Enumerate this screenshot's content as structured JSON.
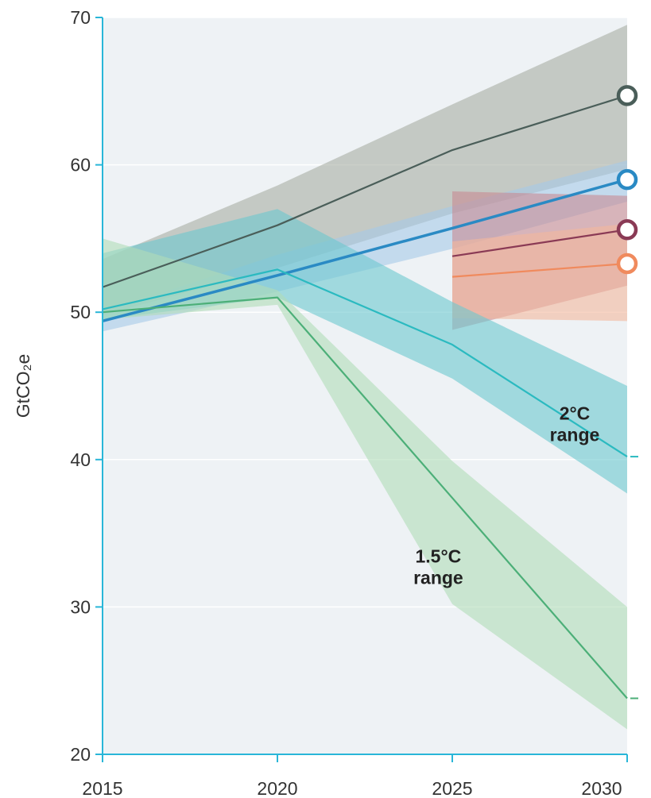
{
  "chart_data": {
    "type": "area",
    "title": "",
    "xlabel": "",
    "ylabel": "GtCO₂e",
    "x": [
      2015,
      2020,
      2025,
      2030
    ],
    "xlim": [
      2015,
      2030
    ],
    "ylim": [
      20,
      70
    ],
    "xticks": [
      "2015",
      "2020",
      "2025",
      "2030"
    ],
    "yticks": [
      "20",
      "30",
      "40",
      "50",
      "60",
      "70"
    ],
    "grid": "horizontal",
    "legend": "none",
    "colors": {
      "plot_background": "#eef2f5",
      "gridline": "#ffffff",
      "axis": "#29b6d8",
      "tick_label": "#333333"
    },
    "series": [
      {
        "x": [
          2015,
          2020,
          2025,
          2030
        ],
        "values": [
          51.7,
          55.9,
          61.0,
          64.7
        ],
        "band_low": [
          49.8,
          53.0,
          56.7,
          59.7
        ],
        "band_high": [
          53.6,
          58.6,
          64.1,
          69.5
        ],
        "color": "#4a5e59",
        "band_color": "#a9aea4",
        "marker_end": true
      },
      {
        "x": [
          2015,
          2020,
          2025,
          2030
        ],
        "values": [
          49.4,
          52.5,
          55.7,
          59.0
        ],
        "band_low": [
          48.7,
          51.4,
          54.3,
          57.5
        ],
        "band_high": [
          50.0,
          53.9,
          57.2,
          60.3
        ],
        "color": "#2a8ac4",
        "band_color": "#a7c9e8",
        "marker_end": true
      },
      {
        "x": [
          2025,
          2030
        ],
        "values": [
          53.8,
          55.6
        ],
        "band_low": [
          48.8,
          51.8
        ],
        "band_high": [
          58.2,
          57.9
        ],
        "color": "#8a3a55",
        "band_color": "#c88a92",
        "marker_end": true
      },
      {
        "x": [
          2025,
          2030
        ],
        "values": [
          52.4,
          53.3
        ],
        "band_low": [
          49.6,
          49.4
        ],
        "band_high": [
          54.8,
          56.0
        ],
        "color": "#f08a5d",
        "band_color": "#f4b79c",
        "marker_end": true
      },
      {
        "x": [
          2015,
          2020,
          2025,
          2030
        ],
        "values": [
          50.2,
          52.9,
          47.8,
          40.2
        ],
        "band_low": [
          49.5,
          51.0,
          45.5,
          37.7
        ],
        "band_high": [
          54.0,
          57.0,
          50.7,
          45.0
        ],
        "color": "#2bbac0",
        "band_color": "#6cc8cf",
        "marker_end": false,
        "end_tick": true
      },
      {
        "x": [
          2015,
          2020,
          2025,
          2030
        ],
        "values": [
          50.0,
          51.0,
          37.4,
          23.8
        ],
        "band_low": [
          49.5,
          50.5,
          30.2,
          21.7
        ],
        "band_high": [
          55.0,
          51.5,
          39.9,
          30.0
        ],
        "color": "#4caf78",
        "band_color": "#b0dcb8",
        "marker_end": false,
        "end_tick": true
      }
    ],
    "annotations": [
      {
        "lines": [
          "2°C",
          "range"
        ],
        "x": 2028.5,
        "y": 42.7
      },
      {
        "lines": [
          "1.5°C",
          "range"
        ],
        "x": 2024.6,
        "y": 33.0
      }
    ]
  }
}
